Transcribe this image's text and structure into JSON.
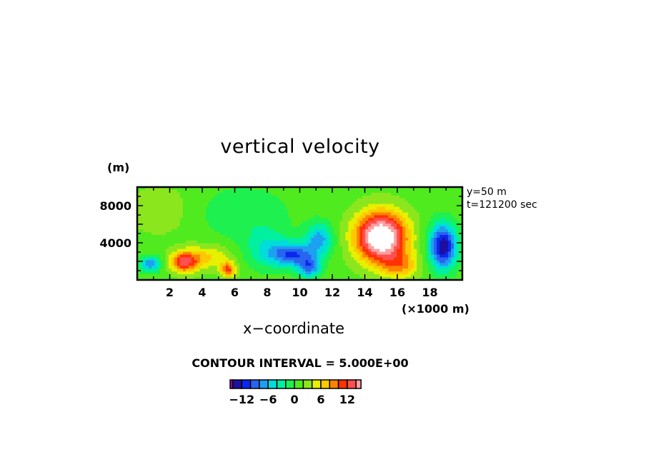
{
  "chart_data": {
    "type": "heatmap",
    "title": "vertical velocity",
    "xlabel": "x−coordinate",
    "x_unit_label": "(×1000 m)",
    "ylabel": "(m)",
    "xlim": [
      0,
      20
    ],
    "ylim": [
      0,
      10000
    ],
    "x_ticks": [
      "2",
      "4",
      "6",
      "8",
      "10",
      "12",
      "14",
      "16",
      "18"
    ],
    "y_ticks": [
      "4000",
      "8000"
    ],
    "annotations": [
      "y=50 m",
      "t=121200 sec"
    ],
    "contour_interval_label": "CONTOUR INTERVAL = 5.000E+00",
    "contour_interval": 5,
    "background_value": 1.2,
    "features": [
      {
        "x": 15.0,
        "y": 4600,
        "amp": 19,
        "sx": 1.1,
        "sy": 1900
      },
      {
        "x": 2.9,
        "y": 1900,
        "amp": 11,
        "sx": 0.6,
        "sy": 800
      },
      {
        "x": 4.3,
        "y": 2500,
        "amp": 5,
        "sx": 1.0,
        "sy": 900
      },
      {
        "x": 5.6,
        "y": 1100,
        "amp": 9,
        "sx": 0.35,
        "sy": 600
      },
      {
        "x": 9.6,
        "y": 2700,
        "amp": -10,
        "sx": 0.9,
        "sy": 900
      },
      {
        "x": 10.6,
        "y": 1300,
        "amp": -9,
        "sx": 0.5,
        "sy": 800
      },
      {
        "x": 11.2,
        "y": 4400,
        "amp": -8,
        "sx": 0.6,
        "sy": 1200
      },
      {
        "x": 18.8,
        "y": 3600,
        "amp": -15,
        "sx": 0.6,
        "sy": 1700
      },
      {
        "x": 0.8,
        "y": 1700,
        "amp": -9,
        "sx": 0.45,
        "sy": 600
      },
      {
        "x": 8.0,
        "y": 3300,
        "amp": -5,
        "sx": 1.0,
        "sy": 1500
      },
      {
        "x": 6.5,
        "y": 7200,
        "amp": -3,
        "sx": 2.0,
        "sy": 2000
      },
      {
        "x": 1.5,
        "y": 7500,
        "amp": 2,
        "sx": 1.5,
        "sy": 2000
      },
      {
        "x": 16.2,
        "y": 1500,
        "amp": 6,
        "sx": 0.8,
        "sy": 1000
      }
    ],
    "colorbar": {
      "levels": [
        -14,
        -12,
        -10,
        -8,
        -6,
        -4,
        -2,
        0,
        2,
        4,
        6,
        8,
        10,
        12,
        14
      ],
      "colors": [
        "#8c00b4",
        "#1e0fa0",
        "#0a28f0",
        "#2864f0",
        "#1ea0f0",
        "#00dcdc",
        "#00f0a0",
        "#1ef050",
        "#50eb1e",
        "#8ce61e",
        "#e6f000",
        "#ffc800",
        "#ff8200",
        "#ff3200",
        "#ff5050",
        "#ffa0a0"
      ],
      "labels": [
        {
          "text": "−12",
          "value": -12
        },
        {
          "text": "−6",
          "value": -6
        },
        {
          "text": "0",
          "value": 0
        },
        {
          "text": "6",
          "value": 6
        },
        {
          "text": "12",
          "value": 12
        }
      ],
      "over_color": "#ffffff"
    }
  }
}
